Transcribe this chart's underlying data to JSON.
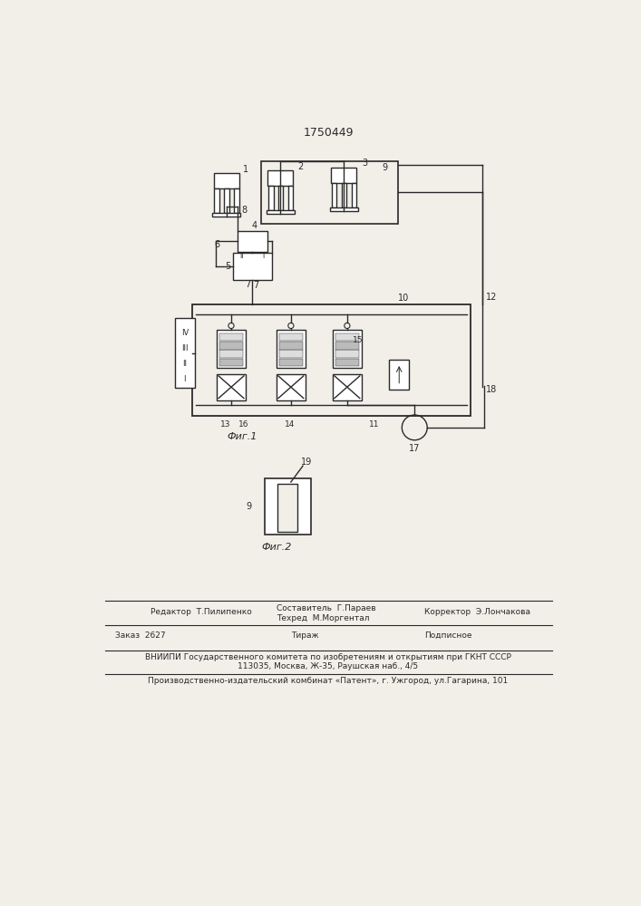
{
  "title": "1750449",
  "fig1_label": "Фиг.1",
  "fig2_label": "Фиг.2",
  "bg_color": "#f2efe9",
  "line_color": "#2a2a2a",
  "compositor": "Составитель  Г.Параев",
  "techred": "Техред  М.Моргентал",
  "corrector": "Корректор  Э.Лончакова",
  "editor": "Редактор  Т.Пилипенко",
  "order": "Заказ  2627",
  "tirazh": "Тираж",
  "podpisnoe": "Подписное",
  "vniip1": "ВНИИПИ Государственного комитета по изобретениям и открытиям при ГКНТ СССР",
  "vniip2": "113035, Москва, Ж-35, Раушская наб., 4/5",
  "patent_line": "Производственно-издательский комбинат «Патент», г. Ужгород, ул.Гагарина, 101"
}
